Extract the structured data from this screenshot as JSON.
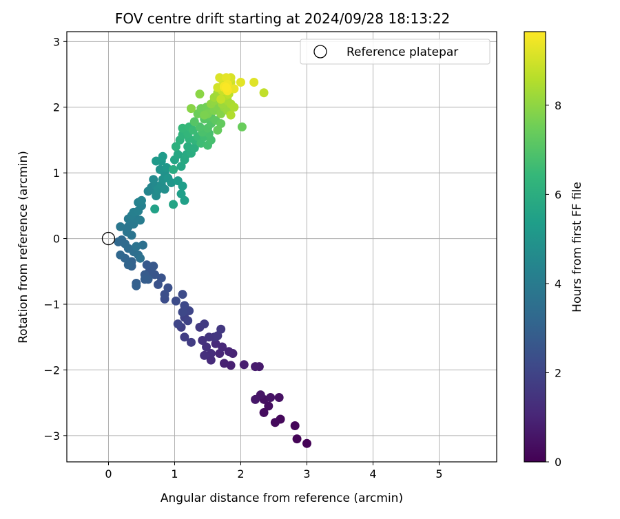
{
  "chart_data": {
    "type": "scatter",
    "title": "FOV centre drift starting at 2024/09/28 18:13:22",
    "xlabel": "Angular distance from reference (arcmin)",
    "ylabel": "Rotation from reference (arcmin)",
    "xlim": [
      -0.63,
      5.87
    ],
    "ylim": [
      -3.4,
      3.15
    ],
    "xticks": [
      0,
      1,
      2,
      3,
      4,
      5
    ],
    "xtick_labels": [
      "0",
      "1",
      "2",
      "3",
      "4",
      "5"
    ],
    "yticks": [
      -3,
      -2,
      -1,
      0,
      1,
      2,
      3
    ],
    "ytick_labels": [
      "−3",
      "−2",
      "−1",
      "0",
      "1",
      "2",
      "3"
    ],
    "grid": true,
    "legend": {
      "placement": "top-right",
      "entries": [
        {
          "label": "Reference platepar",
          "marker": "open-circle",
          "color": "#000000"
        }
      ]
    },
    "colorbar": {
      "label": "Hours from first FF file",
      "range": [
        0,
        9.65
      ],
      "ticks": [
        0,
        2,
        4,
        6,
        8
      ],
      "tick_labels": [
        "0",
        "2",
        "4",
        "6",
        "8"
      ],
      "colormap": "viridis",
      "colormap_stops": [
        "#440154",
        "#482878",
        "#3e4989",
        "#31688e",
        "#26828e",
        "#1f9e89",
        "#35b779",
        "#6ece58",
        "#b5de2b",
        "#fde725"
      ]
    },
    "reference_point": {
      "x": 0,
      "y": 0,
      "label": "Reference platepar"
    },
    "series": [
      {
        "color_by": "hours",
        "points": [
          [
            3.0,
            -3.12,
            0.05
          ],
          [
            2.85,
            -3.05,
            0.1
          ],
          [
            2.82,
            -2.85,
            0.15
          ],
          [
            2.6,
            -2.75,
            0.2
          ],
          [
            2.52,
            -2.8,
            0.25
          ],
          [
            2.35,
            -2.65,
            0.3
          ],
          [
            2.42,
            -2.55,
            0.35
          ],
          [
            2.35,
            -2.45,
            0.4
          ],
          [
            2.58,
            -2.42,
            0.45
          ],
          [
            2.45,
            -2.42,
            0.5
          ],
          [
            2.3,
            -2.38,
            0.55
          ],
          [
            2.22,
            -2.45,
            0.6
          ],
          [
            2.28,
            -1.95,
            0.7
          ],
          [
            2.22,
            -1.95,
            0.75
          ],
          [
            2.05,
            -1.92,
            0.8
          ],
          [
            1.85,
            -1.93,
            0.85
          ],
          [
            1.75,
            -1.9,
            0.9
          ],
          [
            1.88,
            -1.75,
            0.95
          ],
          [
            1.82,
            -1.72,
            1.0
          ],
          [
            1.68,
            -1.75,
            1.05
          ],
          [
            1.72,
            -1.65,
            1.1
          ],
          [
            1.62,
            -1.6,
            1.15
          ],
          [
            1.55,
            -1.85,
            1.2
          ],
          [
            1.55,
            -1.75,
            1.25
          ],
          [
            1.45,
            -1.78,
            1.3
          ],
          [
            1.48,
            -1.65,
            1.35
          ],
          [
            1.42,
            -1.55,
            1.4
          ],
          [
            1.52,
            -1.5,
            1.45
          ],
          [
            1.6,
            -1.5,
            1.5
          ],
          [
            1.65,
            -1.48,
            1.55
          ],
          [
            1.7,
            -1.38,
            1.6
          ],
          [
            1.38,
            -1.35,
            1.65
          ],
          [
            1.45,
            -1.3,
            1.7
          ],
          [
            1.25,
            -1.58,
            1.75
          ],
          [
            1.15,
            -1.5,
            1.8
          ],
          [
            1.1,
            -1.35,
            1.85
          ],
          [
            1.15,
            -1.2,
            1.9
          ],
          [
            1.2,
            -1.25,
            1.95
          ],
          [
            1.05,
            -1.3,
            2.0
          ],
          [
            1.22,
            -1.1,
            2.05
          ],
          [
            1.12,
            -1.12,
            2.1
          ],
          [
            1.15,
            -1.02,
            2.15
          ],
          [
            1.12,
            -0.85,
            2.2
          ],
          [
            1.02,
            -0.95,
            2.25
          ],
          [
            0.85,
            -0.92,
            2.3
          ],
          [
            0.85,
            -0.85,
            2.35
          ],
          [
            0.9,
            -0.75,
            2.4
          ],
          [
            0.75,
            -0.7,
            2.45
          ],
          [
            0.8,
            -0.6,
            2.5
          ],
          [
            0.7,
            -0.55,
            2.55
          ],
          [
            0.62,
            -0.5,
            2.6
          ],
          [
            0.68,
            -0.42,
            2.65
          ],
          [
            0.58,
            -0.4,
            2.7
          ],
          [
            0.55,
            -0.55,
            2.75
          ],
          [
            0.6,
            -0.62,
            2.8
          ],
          [
            0.55,
            -0.62,
            2.85
          ],
          [
            0.42,
            -0.68,
            2.9
          ],
          [
            0.42,
            -0.72,
            2.95
          ],
          [
            0.35,
            -0.42,
            3.0
          ],
          [
            0.35,
            -0.35,
            3.05
          ],
          [
            0.3,
            -0.4,
            3.1
          ],
          [
            0.25,
            -0.3,
            3.15
          ],
          [
            0.18,
            -0.25,
            3.2
          ],
          [
            0.15,
            -0.05,
            3.25
          ],
          [
            0.2,
            -0.02,
            3.3
          ],
          [
            0.25,
            -0.08,
            3.35
          ],
          [
            0.3,
            -0.15,
            3.4
          ],
          [
            0.38,
            -0.2,
            3.45
          ],
          [
            0.45,
            -0.25,
            3.5
          ],
          [
            0.52,
            -0.1,
            3.55
          ],
          [
            0.48,
            -0.3,
            3.6
          ],
          [
            0.42,
            -0.12,
            3.65
          ],
          [
            0.35,
            0.05,
            3.7
          ],
          [
            0.28,
            0.1,
            3.75
          ],
          [
            0.3,
            0.18,
            3.8
          ],
          [
            0.18,
            0.18,
            3.85
          ],
          [
            0.38,
            0.22,
            3.9
          ],
          [
            0.3,
            0.3,
            3.95
          ],
          [
            0.42,
            0.3,
            4.0
          ],
          [
            0.48,
            0.28,
            4.05
          ],
          [
            0.35,
            0.35,
            4.1
          ],
          [
            0.38,
            0.4,
            4.15
          ],
          [
            0.45,
            0.42,
            4.2
          ],
          [
            0.5,
            0.5,
            4.25
          ],
          [
            0.45,
            0.55,
            4.3
          ],
          [
            0.5,
            0.58,
            4.35
          ],
          [
            0.6,
            0.72,
            4.4
          ],
          [
            0.65,
            0.78,
            4.45
          ],
          [
            0.72,
            0.7,
            4.5
          ],
          [
            0.72,
            0.8,
            4.55
          ],
          [
            0.68,
            0.9,
            4.6
          ],
          [
            0.72,
            0.65,
            4.65
          ],
          [
            0.75,
            0.75,
            4.7
          ],
          [
            0.8,
            0.82,
            4.75
          ],
          [
            0.85,
            0.75,
            4.8
          ],
          [
            0.82,
            0.9,
            4.85
          ],
          [
            0.85,
            1.0,
            4.9
          ],
          [
            0.78,
            1.05,
            4.95
          ],
          [
            0.9,
            0.92,
            5.0
          ],
          [
            0.95,
            0.85,
            5.05
          ],
          [
            0.88,
            1.08,
            5.1
          ],
          [
            0.8,
            1.18,
            5.15
          ],
          [
            0.72,
            1.18,
            5.2
          ],
          [
            0.82,
            1.25,
            5.25
          ],
          [
            1.05,
            0.88,
            5.3
          ],
          [
            1.12,
            0.8,
            5.35
          ],
          [
            1.1,
            0.68,
            5.4
          ],
          [
            1.15,
            0.58,
            5.45
          ],
          [
            0.7,
            0.45,
            5.5
          ],
          [
            0.98,
            0.52,
            5.6
          ],
          [
            1.0,
            1.2,
            5.65
          ],
          [
            1.1,
            1.1,
            5.7
          ],
          [
            1.05,
            1.28,
            5.75
          ],
          [
            1.15,
            1.2,
            5.8
          ],
          [
            1.18,
            1.28,
            5.85
          ],
          [
            0.98,
            1.05,
            5.9
          ],
          [
            1.25,
            1.3,
            5.95
          ],
          [
            1.2,
            1.4,
            6.0
          ],
          [
            1.3,
            1.38,
            6.05
          ],
          [
            1.02,
            1.4,
            6.1
          ],
          [
            1.08,
            1.5,
            6.15
          ],
          [
            1.12,
            1.58,
            6.2
          ],
          [
            1.22,
            1.52,
            6.25
          ],
          [
            1.3,
            1.5,
            6.3
          ],
          [
            1.2,
            1.6,
            6.35
          ],
          [
            1.12,
            1.68,
            6.4
          ],
          [
            1.22,
            1.7,
            6.45
          ],
          [
            1.35,
            1.55,
            6.5
          ],
          [
            1.28,
            1.65,
            6.55
          ],
          [
            1.4,
            1.45,
            6.6
          ],
          [
            1.45,
            1.55,
            6.65
          ],
          [
            1.5,
            1.42,
            6.7
          ],
          [
            1.55,
            1.5,
            6.75
          ],
          [
            1.52,
            1.6,
            6.8
          ],
          [
            1.42,
            1.62,
            6.85
          ],
          [
            1.38,
            1.7,
            6.9
          ],
          [
            1.5,
            1.68,
            6.95
          ],
          [
            1.55,
            1.75,
            7.0
          ],
          [
            1.3,
            1.78,
            7.05
          ],
          [
            1.45,
            1.82,
            7.1
          ],
          [
            1.55,
            1.85,
            7.15
          ],
          [
            1.62,
            1.8,
            7.2
          ],
          [
            1.7,
            1.75,
            7.3
          ],
          [
            1.65,
            1.65,
            7.35
          ],
          [
            2.02,
            1.7,
            7.4
          ],
          [
            1.35,
            1.9,
            7.45
          ],
          [
            1.4,
            1.98,
            7.5
          ],
          [
            1.48,
            2.0,
            7.55
          ],
          [
            1.55,
            1.95,
            7.6
          ],
          [
            1.5,
            1.9,
            7.65
          ],
          [
            1.45,
            1.88,
            7.7
          ],
          [
            1.6,
            1.95,
            7.75
          ],
          [
            1.65,
            2.0,
            7.8
          ],
          [
            1.7,
            1.9,
            7.85
          ],
          [
            1.25,
            1.98,
            7.9
          ],
          [
            1.38,
            2.2,
            7.95
          ],
          [
            1.55,
            2.05,
            8.0
          ],
          [
            1.6,
            2.1,
            8.05
          ],
          [
            1.75,
            2.0,
            8.1
          ],
          [
            1.8,
            1.95,
            8.15
          ],
          [
            1.72,
            2.05,
            8.2
          ],
          [
            1.6,
            2.15,
            8.25
          ],
          [
            1.65,
            2.22,
            8.3
          ],
          [
            1.8,
            2.1,
            8.35
          ],
          [
            1.85,
            2.05,
            8.4
          ],
          [
            1.9,
            2.0,
            8.45
          ],
          [
            1.85,
            1.88,
            8.5
          ],
          [
            1.78,
            2.18,
            8.55
          ],
          [
            1.7,
            2.3,
            8.6
          ],
          [
            1.75,
            2.35,
            8.65
          ],
          [
            1.82,
            2.2,
            8.7
          ],
          [
            2.35,
            2.22,
            8.75
          ],
          [
            1.7,
            2.12,
            8.8
          ],
          [
            1.72,
            2.25,
            8.85
          ],
          [
            1.8,
            2.32,
            8.9
          ],
          [
            1.85,
            2.38,
            8.95
          ],
          [
            1.65,
            2.3,
            9.0
          ],
          [
            1.72,
            2.42,
            9.05
          ],
          [
            1.85,
            2.45,
            9.1
          ],
          [
            1.68,
            2.45,
            9.15
          ],
          [
            2.2,
            2.38,
            9.2
          ],
          [
            2.0,
            2.38,
            9.25
          ],
          [
            1.78,
            2.45,
            9.3
          ],
          [
            1.9,
            2.28,
            9.35
          ],
          [
            1.75,
            2.3,
            9.4
          ],
          [
            1.8,
            2.35,
            9.45
          ],
          [
            1.75,
            2.32,
            9.5
          ],
          [
            1.8,
            2.25,
            9.55
          ],
          [
            1.78,
            2.3,
            9.6
          ]
        ]
      }
    ]
  }
}
